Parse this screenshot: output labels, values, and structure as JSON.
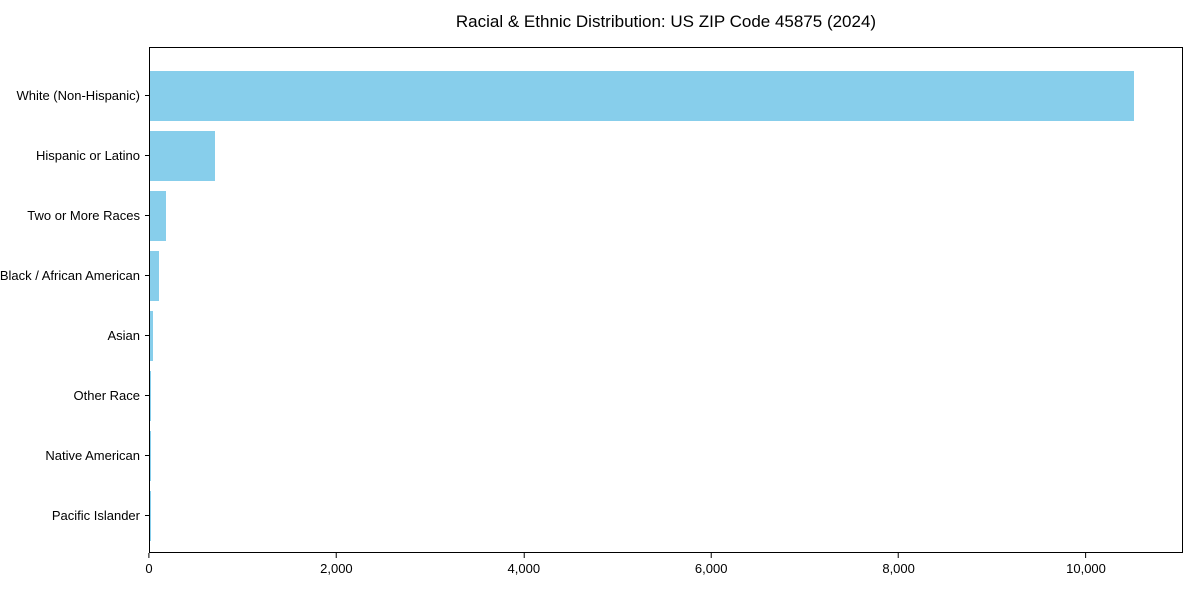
{
  "title": "Racial & Ethnic Distribution: US ZIP Code 45875 (2024)",
  "chart_data": {
    "type": "bar",
    "orientation": "horizontal",
    "title": "Racial & Ethnic Distribution: US ZIP Code 45875 (2024)",
    "categories": [
      "White (Non-Hispanic)",
      "Hispanic or Latino",
      "Two or More Races",
      "Black / African American",
      "Asian",
      "Other Race",
      "Native American",
      "Pacific Islander"
    ],
    "values": [
      10520,
      690,
      170,
      95,
      30,
      12,
      5,
      2
    ],
    "bar_color": "#87CEEB",
    "xlabel": "",
    "ylabel": "",
    "xlim": [
      0,
      11035
    ],
    "xticks": [
      0,
      2000,
      4000,
      6000,
      8000,
      10000
    ],
    "xtick_labels": [
      "0",
      "2,000",
      "4,000",
      "6,000",
      "8,000",
      "10,000"
    ],
    "grid": false,
    "legend_position": "none"
  }
}
